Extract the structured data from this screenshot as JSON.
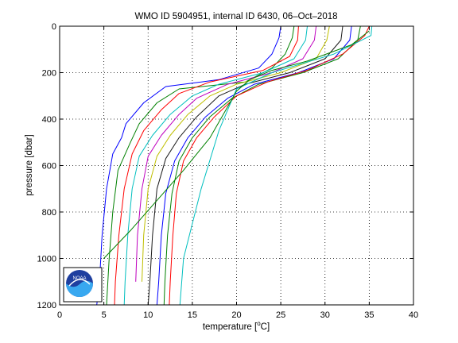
{
  "chart_data": {
    "type": "line",
    "title": "WMO ID 5904951, internal ID 6430, 06–Oct–2018",
    "xlabel_prefix": "temperature [",
    "xlabel_sup": "o",
    "xlabel_suffix": "C]",
    "ylabel": "pressure [dbar]",
    "xlim": [
      0,
      40
    ],
    "ylim": [
      0,
      1200
    ],
    "y_reversed": true,
    "grid": true,
    "x_ticks": [
      0,
      5,
      10,
      15,
      20,
      25,
      30,
      35,
      40
    ],
    "y_ticks": [
      0,
      200,
      400,
      600,
      800,
      1000,
      1200
    ],
    "logo_text": "NOAA",
    "series": [
      {
        "color": "#0000ff",
        "points": [
          [
            25.0,
            0
          ],
          [
            24.8,
            50
          ],
          [
            24.0,
            120
          ],
          [
            22.5,
            180
          ],
          [
            18.0,
            230
          ],
          [
            12.0,
            260
          ],
          [
            9.5,
            330
          ],
          [
            7.5,
            420
          ],
          [
            7.0,
            480
          ],
          [
            6.0,
            550
          ],
          [
            5.3,
            700
          ],
          [
            4.8,
            900
          ],
          [
            4.5,
            1100
          ],
          [
            4.2,
            1200
          ]
        ]
      },
      {
        "color": "#008000",
        "points": [
          [
            26.5,
            0
          ],
          [
            26.3,
            50
          ],
          [
            25.5,
            120
          ],
          [
            24.0,
            180
          ],
          [
            21.0,
            240
          ],
          [
            13.5,
            270
          ],
          [
            11.0,
            330
          ],
          [
            9.0,
            420
          ],
          [
            8.0,
            500
          ],
          [
            6.6,
            620
          ],
          [
            6.0,
            800
          ],
          [
            5.6,
            1000
          ],
          [
            5.3,
            1200
          ]
        ]
      },
      {
        "color": "#ff0000",
        "points": [
          [
            27.0,
            0
          ],
          [
            26.9,
            60
          ],
          [
            26.0,
            130
          ],
          [
            23.0,
            190
          ],
          [
            17.0,
            240
          ],
          [
            13.5,
            290
          ],
          [
            11.5,
            360
          ],
          [
            9.5,
            450
          ],
          [
            8.2,
            550
          ],
          [
            7.3,
            700
          ],
          [
            6.7,
            900
          ],
          [
            6.3,
            1100
          ],
          [
            6.2,
            1200
          ]
        ]
      },
      {
        "color": "#00bfbf",
        "points": [
          [
            28.0,
            0
          ],
          [
            27.8,
            60
          ],
          [
            26.5,
            140
          ],
          [
            23.0,
            200
          ],
          [
            18.0,
            250
          ],
          [
            15.0,
            300
          ],
          [
            12.5,
            380
          ],
          [
            10.5,
            470
          ],
          [
            9.0,
            560
          ],
          [
            8.2,
            700
          ],
          [
            7.7,
            900
          ],
          [
            7.4,
            1100
          ],
          [
            7.3,
            1200
          ]
        ]
      },
      {
        "color": "#bf00bf",
        "points": [
          [
            29.0,
            0
          ],
          [
            28.8,
            60
          ],
          [
            27.5,
            140
          ],
          [
            24.0,
            200
          ],
          [
            19.0,
            250
          ],
          [
            15.5,
            310
          ],
          [
            13.5,
            380
          ],
          [
            11.5,
            470
          ],
          [
            10.0,
            560
          ],
          [
            9.3,
            700
          ],
          [
            8.8,
            900
          ],
          [
            8.6,
            1100
          ]
        ]
      },
      {
        "color": "#bfbf00",
        "points": [
          [
            30.5,
            0
          ],
          [
            30.2,
            60
          ],
          [
            29.0,
            140
          ],
          [
            25.0,
            200
          ],
          [
            20.0,
            250
          ],
          [
            17.0,
            300
          ],
          [
            14.5,
            380
          ],
          [
            12.5,
            470
          ],
          [
            11.0,
            560
          ],
          [
            10.0,
            700
          ],
          [
            9.5,
            900
          ],
          [
            9.3,
            1100
          ]
        ]
      },
      {
        "color": "#1a1a1a",
        "points": [
          [
            32.0,
            0
          ],
          [
            31.8,
            60
          ],
          [
            30.0,
            140
          ],
          [
            26.0,
            200
          ],
          [
            21.0,
            250
          ],
          [
            18.0,
            300
          ],
          [
            15.5,
            390
          ],
          [
            13.5,
            480
          ],
          [
            12.0,
            570
          ],
          [
            11.0,
            700
          ],
          [
            10.5,
            900
          ],
          [
            10.2,
            1100
          ],
          [
            10.0,
            1200
          ]
        ]
      },
      {
        "color": "#0000ff",
        "points": [
          [
            33.0,
            0
          ],
          [
            32.8,
            60
          ],
          [
            31.0,
            140
          ],
          [
            27.0,
            200
          ],
          [
            22.0,
            250
          ],
          [
            19.0,
            310
          ],
          [
            16.5,
            390
          ],
          [
            14.5,
            480
          ],
          [
            13.0,
            580
          ],
          [
            12.0,
            720
          ],
          [
            11.5,
            900
          ],
          [
            11.2,
            1100
          ],
          [
            11.0,
            1200
          ]
        ]
      },
      {
        "color": "#008000",
        "points": [
          [
            34.0,
            0
          ],
          [
            33.7,
            60
          ],
          [
            31.5,
            140
          ],
          [
            27.5,
            200
          ],
          [
            22.5,
            250
          ],
          [
            19.5,
            310
          ],
          [
            17.0,
            390
          ],
          [
            15.0,
            480
          ],
          [
            13.5,
            580
          ],
          [
            12.7,
            720
          ],
          [
            12.2,
            900
          ],
          [
            11.9,
            1100
          ],
          [
            11.8,
            1200
          ]
        ]
      },
      {
        "color": "#ff0000",
        "points": [
          [
            35.0,
            0
          ],
          [
            34.5,
            40
          ],
          [
            32.0,
            120
          ],
          [
            28.0,
            190
          ],
          [
            23.5,
            240
          ],
          [
            20.0,
            300
          ],
          [
            17.5,
            390
          ],
          [
            15.5,
            480
          ],
          [
            14.0,
            580
          ],
          [
            13.2,
            720
          ],
          [
            12.8,
            900
          ],
          [
            12.5,
            1100
          ],
          [
            12.4,
            1200
          ]
        ]
      },
      {
        "color": "#00bfbf",
        "points": [
          [
            35.3,
            0
          ],
          [
            35.2,
            40
          ],
          [
            31.0,
            120
          ],
          [
            24.0,
            200
          ],
          [
            20.0,
            270
          ],
          [
            18.0,
            450
          ],
          [
            16.0,
            700
          ],
          [
            14.0,
            1000
          ],
          [
            13.6,
            1200
          ]
        ]
      },
      {
        "color": "#008000",
        "points": [
          [
            5.0,
            1000
          ],
          [
            8.0,
            880
          ],
          [
            11.0,
            750
          ],
          [
            14.0,
            620
          ],
          [
            17.0,
            480
          ],
          [
            20.0,
            280
          ],
          [
            21.5,
            230
          ],
          [
            24.0,
            190
          ],
          [
            28.0,
            150
          ],
          [
            33.0,
            80
          ],
          [
            35.0,
            20
          ]
        ]
      }
    ]
  }
}
